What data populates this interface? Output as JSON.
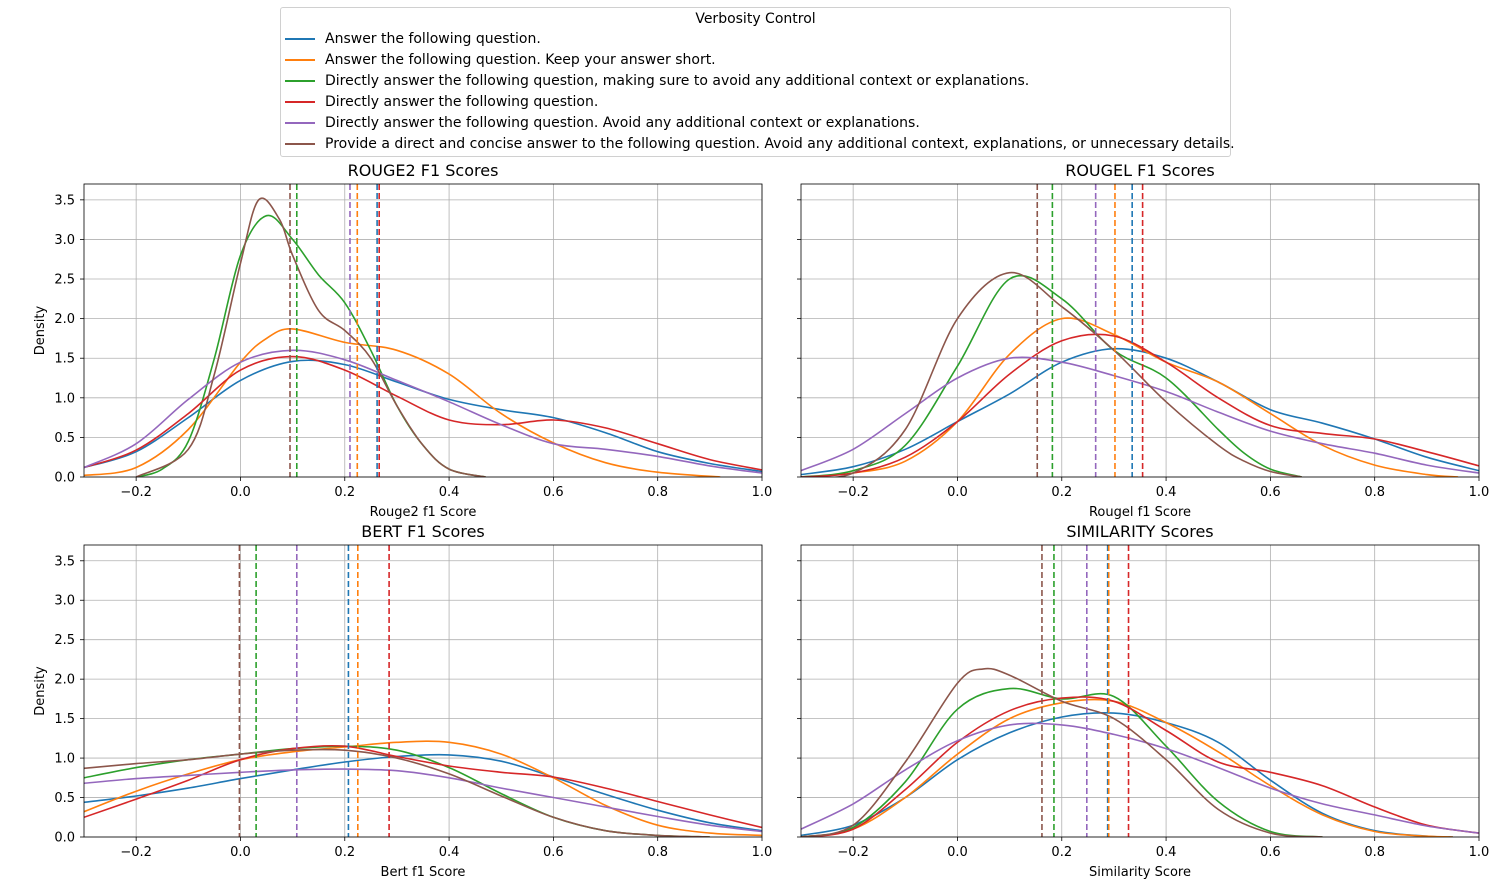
{
  "legend": {
    "title": "Verbosity Control",
    "entries": [
      {
        "label": "Answer the following question.",
        "color": "#1f77b4"
      },
      {
        "label": "Answer the following question. Keep your answer short.",
        "color": "#ff7f0e"
      },
      {
        "label": "Directly answer the following question, making sure to avoid any additional context or explanations.",
        "color": "#2ca02c"
      },
      {
        "label": "Directly answer the following question.",
        "color": "#d62728"
      },
      {
        "label": "Directly answer the following question. Avoid any additional context or explanations.",
        "color": "#9467bd"
      },
      {
        "label": "Provide a direct and concise answer to the following question. Avoid any additional context, explanations, or unnecessary details.",
        "color": "#8c564b"
      }
    ]
  },
  "chart_data": [
    {
      "type": "line",
      "title": "ROUGE2 F1 Scores",
      "xlabel": "Rouge2 f1 Score",
      "ylabel": "Density",
      "xlim": [
        -0.3,
        1.0
      ],
      "ylim": [
        0,
        3.7
      ],
      "xticks": [
        "−0.2",
        "0.0",
        "0.2",
        "0.4",
        "0.6",
        "0.8",
        "1.0"
      ],
      "yticks": [
        "0.0",
        "0.5",
        "1.0",
        "1.5",
        "2.0",
        "2.5",
        "3.0",
        "3.5"
      ],
      "grid": true,
      "series": [
        {
          "x": [
            -0.3,
            -0.2,
            -0.1,
            0.0,
            0.1,
            0.2,
            0.3,
            0.4,
            0.5,
            0.6,
            0.7,
            0.8,
            0.9,
            1.0
          ],
          "y": [
            0.12,
            0.32,
            0.75,
            1.22,
            1.46,
            1.42,
            1.2,
            0.98,
            0.85,
            0.75,
            0.56,
            0.32,
            0.17,
            0.07
          ],
          "mean": 0.262
        },
        {
          "x": [
            -0.3,
            -0.2,
            -0.1,
            0.0,
            0.05,
            0.1,
            0.2,
            0.3,
            0.4,
            0.5,
            0.6,
            0.7,
            0.8,
            0.92
          ],
          "y": [
            0.02,
            0.12,
            0.6,
            1.45,
            1.75,
            1.87,
            1.7,
            1.6,
            1.3,
            0.8,
            0.43,
            0.18,
            0.06,
            0.0
          ],
          "mean": 0.224
        },
        {
          "x": [
            -0.2,
            -0.15,
            -0.1,
            -0.05,
            0.0,
            0.05,
            0.1,
            0.15,
            0.2,
            0.25,
            0.3,
            0.35,
            0.4,
            0.47
          ],
          "y": [
            0.0,
            0.1,
            0.45,
            1.5,
            2.8,
            3.3,
            3.0,
            2.55,
            2.2,
            1.6,
            0.9,
            0.4,
            0.1,
            0.0
          ],
          "mean": 0.108
        },
        {
          "x": [
            -0.3,
            -0.2,
            -0.1,
            0.0,
            0.1,
            0.2,
            0.3,
            0.4,
            0.5,
            0.6,
            0.7,
            0.8,
            0.9,
            1.0
          ],
          "y": [
            0.12,
            0.34,
            0.8,
            1.35,
            1.52,
            1.35,
            1.02,
            0.72,
            0.66,
            0.72,
            0.62,
            0.42,
            0.22,
            0.09
          ],
          "mean": 0.266
        },
        {
          "x": [
            -0.3,
            -0.2,
            -0.1,
            0.0,
            0.1,
            0.2,
            0.3,
            0.4,
            0.5,
            0.6,
            0.7,
            0.8,
            0.9,
            1.0
          ],
          "y": [
            0.12,
            0.42,
            0.98,
            1.45,
            1.6,
            1.48,
            1.22,
            0.95,
            0.66,
            0.42,
            0.35,
            0.26,
            0.14,
            0.05
          ],
          "mean": 0.21
        },
        {
          "x": [
            -0.2,
            -0.1,
            -0.05,
            0.0,
            0.035,
            0.075,
            0.1,
            0.15,
            0.2,
            0.25,
            0.3,
            0.35,
            0.4,
            0.47
          ],
          "y": [
            0.0,
            0.35,
            1.3,
            2.7,
            3.5,
            3.25,
            2.8,
            2.1,
            1.85,
            1.5,
            0.9,
            0.4,
            0.1,
            0.0
          ],
          "mean": 0.095
        }
      ]
    },
    {
      "type": "line",
      "title": "ROUGEL F1 Scores",
      "xlabel": "Rougel f1 Score",
      "ylabel": "",
      "xlim": [
        -0.3,
        1.0
      ],
      "ylim": [
        0,
        3.7
      ],
      "xticks": [
        "−0.2",
        "0.0",
        "0.2",
        "0.4",
        "0.6",
        "0.8",
        "1.0"
      ],
      "yticks": [],
      "grid": true,
      "series": [
        {
          "x": [
            -0.3,
            -0.2,
            -0.1,
            0.0,
            0.1,
            0.2,
            0.3,
            0.4,
            0.5,
            0.6,
            0.7,
            0.8,
            0.9,
            1.0
          ],
          "y": [
            0.03,
            0.13,
            0.35,
            0.7,
            1.05,
            1.45,
            1.62,
            1.5,
            1.2,
            0.85,
            0.68,
            0.48,
            0.25,
            0.08
          ],
          "mean": 0.335
        },
        {
          "x": [
            -0.3,
            -0.2,
            -0.1,
            0.0,
            0.1,
            0.2,
            0.3,
            0.4,
            0.5,
            0.6,
            0.7,
            0.8,
            0.9,
            0.96
          ],
          "y": [
            0.0,
            0.05,
            0.2,
            0.7,
            1.55,
            2.0,
            1.8,
            1.45,
            1.2,
            0.8,
            0.4,
            0.15,
            0.03,
            0.0
          ],
          "mean": 0.302
        },
        {
          "x": [
            -0.3,
            -0.2,
            -0.1,
            0.0,
            0.1,
            0.2,
            0.3,
            0.4,
            0.5,
            0.55,
            0.6,
            0.66
          ],
          "y": [
            0.0,
            0.08,
            0.4,
            1.4,
            2.5,
            2.25,
            1.6,
            1.25,
            0.6,
            0.3,
            0.1,
            0.0
          ],
          "mean": 0.182
        },
        {
          "x": [
            -0.3,
            -0.2,
            -0.1,
            0.0,
            0.1,
            0.2,
            0.3,
            0.4,
            0.5,
            0.6,
            0.7,
            0.8,
            0.9,
            1.0
          ],
          "y": [
            0.0,
            0.05,
            0.25,
            0.7,
            1.3,
            1.72,
            1.78,
            1.45,
            1.0,
            0.65,
            0.55,
            0.48,
            0.32,
            0.14
          ],
          "mean": 0.355
        },
        {
          "x": [
            -0.3,
            -0.2,
            -0.1,
            0.0,
            0.1,
            0.2,
            0.3,
            0.4,
            0.5,
            0.6,
            0.7,
            0.8,
            0.9,
            1.0
          ],
          "y": [
            0.08,
            0.35,
            0.8,
            1.25,
            1.5,
            1.45,
            1.28,
            1.08,
            0.82,
            0.58,
            0.42,
            0.3,
            0.15,
            0.05
          ],
          "mean": 0.265
        },
        {
          "x": [
            -0.3,
            -0.2,
            -0.1,
            0.0,
            0.1,
            0.2,
            0.3,
            0.4,
            0.5,
            0.55,
            0.6,
            0.66
          ],
          "y": [
            0.0,
            0.05,
            0.6,
            2.0,
            2.58,
            2.15,
            1.6,
            0.95,
            0.4,
            0.2,
            0.07,
            0.0
          ],
          "mean": 0.153
        }
      ]
    },
    {
      "type": "line",
      "title": "BERT F1 Scores",
      "xlabel": "Bert f1 Score",
      "ylabel": "Density",
      "xlim": [
        -0.3,
        1.0
      ],
      "ylim": [
        0,
        3.7
      ],
      "xticks": [
        "−0.2",
        "0.0",
        "0.2",
        "0.4",
        "0.6",
        "0.8",
        "1.0"
      ],
      "yticks": [
        "0.0",
        "0.5",
        "1.0",
        "1.5",
        "2.0",
        "2.5",
        "3.0",
        "3.5"
      ],
      "grid": true,
      "series": [
        {
          "x": [
            -0.3,
            -0.2,
            -0.1,
            0.0,
            0.1,
            0.2,
            0.3,
            0.4,
            0.5,
            0.6,
            0.7,
            0.8,
            0.9,
            1.0
          ],
          "y": [
            0.44,
            0.52,
            0.62,
            0.74,
            0.85,
            0.95,
            1.02,
            1.04,
            0.96,
            0.76,
            0.54,
            0.34,
            0.18,
            0.08
          ],
          "mean": 0.207
        },
        {
          "x": [
            -0.3,
            -0.2,
            -0.1,
            0.0,
            0.1,
            0.2,
            0.3,
            0.4,
            0.5,
            0.6,
            0.7,
            0.8,
            0.9,
            1.0
          ],
          "y": [
            0.32,
            0.58,
            0.8,
            0.98,
            1.08,
            1.14,
            1.2,
            1.2,
            1.05,
            0.75,
            0.4,
            0.15,
            0.05,
            0.02
          ],
          "mean": 0.225
        },
        {
          "x": [
            -0.3,
            -0.2,
            -0.1,
            0.0,
            0.1,
            0.2,
            0.3,
            0.4,
            0.5,
            0.6,
            0.7,
            0.8,
            0.9
          ],
          "y": [
            0.75,
            0.88,
            0.98,
            1.05,
            1.12,
            1.15,
            1.1,
            0.88,
            0.55,
            0.25,
            0.08,
            0.02,
            0.0
          ],
          "mean": 0.03
        },
        {
          "x": [
            -0.3,
            -0.2,
            -0.1,
            0.0,
            0.1,
            0.2,
            0.3,
            0.4,
            0.5,
            0.6,
            0.7,
            0.8,
            0.9,
            1.0
          ],
          "y": [
            0.25,
            0.48,
            0.72,
            0.98,
            1.12,
            1.15,
            1.02,
            0.9,
            0.82,
            0.76,
            0.62,
            0.45,
            0.28,
            0.12
          ],
          "mean": 0.285
        },
        {
          "x": [
            -0.3,
            -0.2,
            -0.1,
            0.0,
            0.1,
            0.2,
            0.3,
            0.4,
            0.5,
            0.6,
            0.7,
            0.8,
            0.9,
            1.0
          ],
          "y": [
            0.68,
            0.74,
            0.78,
            0.82,
            0.85,
            0.86,
            0.84,
            0.75,
            0.62,
            0.5,
            0.38,
            0.26,
            0.15,
            0.07
          ],
          "mean": 0.108
        },
        {
          "x": [
            -0.3,
            -0.2,
            -0.1,
            0.0,
            0.1,
            0.2,
            0.3,
            0.4,
            0.5,
            0.6,
            0.7,
            0.8,
            0.9
          ],
          "y": [
            0.87,
            0.93,
            0.98,
            1.05,
            1.1,
            1.1,
            1.0,
            0.8,
            0.52,
            0.25,
            0.08,
            0.02,
            0.0
          ],
          "mean": -0.002
        }
      ]
    },
    {
      "type": "line",
      "title": "SIMILARITY Scores",
      "xlabel": "Similarity Score",
      "ylabel": "",
      "xlim": [
        -0.3,
        1.0
      ],
      "ylim": [
        0,
        3.7
      ],
      "xticks": [
        "−0.2",
        "0.0",
        "0.2",
        "0.4",
        "0.6",
        "0.8",
        "1.0"
      ],
      "yticks": [],
      "grid": true,
      "series": [
        {
          "x": [
            -0.3,
            -0.2,
            -0.1,
            0.0,
            0.1,
            0.2,
            0.3,
            0.4,
            0.5,
            0.6,
            0.7,
            0.8,
            0.9,
            0.95
          ],
          "y": [
            0.02,
            0.15,
            0.5,
            0.98,
            1.32,
            1.52,
            1.57,
            1.45,
            1.2,
            0.72,
            0.3,
            0.08,
            0.01,
            0.0
          ],
          "mean": 0.288
        },
        {
          "x": [
            -0.3,
            -0.2,
            -0.1,
            0.0,
            0.1,
            0.2,
            0.3,
            0.4,
            0.5,
            0.6,
            0.7,
            0.8,
            0.9,
            0.95
          ],
          "y": [
            0.0,
            0.1,
            0.5,
            1.05,
            1.5,
            1.7,
            1.72,
            1.45,
            1.08,
            0.65,
            0.28,
            0.07,
            0.01,
            0.0
          ],
          "mean": 0.29
        },
        {
          "x": [
            -0.3,
            -0.2,
            -0.1,
            0.0,
            0.1,
            0.2,
            0.3,
            0.4,
            0.5,
            0.6,
            0.7
          ],
          "y": [
            0.0,
            0.12,
            0.7,
            1.62,
            1.88,
            1.75,
            1.78,
            1.15,
            0.45,
            0.07,
            0.0
          ],
          "mean": 0.185
        },
        {
          "x": [
            -0.3,
            -0.2,
            -0.1,
            0.0,
            0.1,
            0.2,
            0.3,
            0.4,
            0.5,
            0.6,
            0.7,
            0.8,
            0.9,
            1.0
          ],
          "y": [
            0.0,
            0.1,
            0.6,
            1.2,
            1.6,
            1.76,
            1.72,
            1.35,
            0.95,
            0.82,
            0.65,
            0.38,
            0.15,
            0.05
          ],
          "mean": 0.328
        },
        {
          "x": [
            -0.3,
            -0.2,
            -0.1,
            0.0,
            0.1,
            0.2,
            0.3,
            0.4,
            0.5,
            0.6,
            0.7,
            0.8,
            0.9,
            1.0
          ],
          "y": [
            0.1,
            0.42,
            0.85,
            1.22,
            1.42,
            1.42,
            1.3,
            1.12,
            0.88,
            0.62,
            0.42,
            0.28,
            0.14,
            0.05
          ],
          "mean": 0.248
        },
        {
          "x": [
            -0.3,
            -0.2,
            -0.1,
            0.0,
            0.05,
            0.1,
            0.2,
            0.3,
            0.4,
            0.5,
            0.6,
            0.7
          ],
          "y": [
            0.0,
            0.15,
            0.95,
            1.95,
            2.13,
            2.05,
            1.72,
            1.5,
            0.98,
            0.35,
            0.05,
            0.0
          ],
          "mean": 0.162
        }
      ]
    }
  ]
}
